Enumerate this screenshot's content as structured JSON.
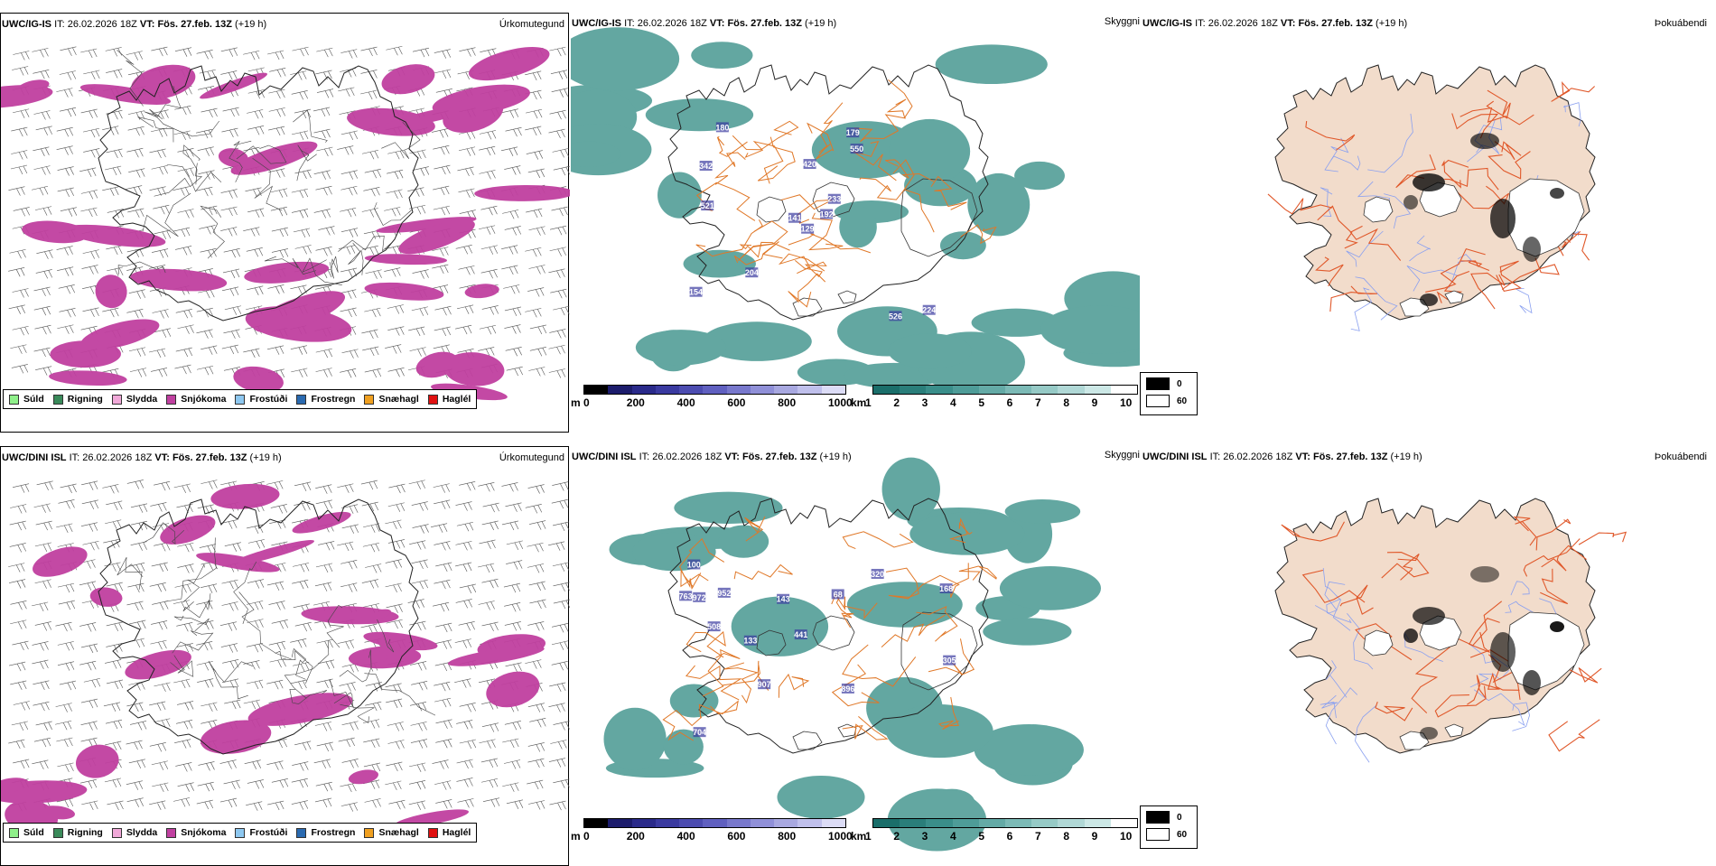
{
  "rows": [
    {
      "id": "ig",
      "model": "UWC/IG-IS",
      "it_label": "IT:",
      "it_value": "26.02.2026 18Z",
      "vt_label": "VT:",
      "vt_value": "Fös. 27.feb. 13Z",
      "lead": "(+19 h)"
    },
    {
      "id": "dini",
      "model": "UWC/DINI ISL",
      "it_label": "IT:",
      "it_value": "26.02.2026 18Z",
      "vt_label": "VT:",
      "vt_value": "Fös. 27.feb. 13Z",
      "lead": "(+19 h)"
    }
  ],
  "panel_titles": {
    "precip": "Úrkomutegund",
    "visibility": "Skyggni",
    "fog": "Þokuábendi"
  },
  "precip_legend": [
    {
      "label": "Súld",
      "color": "#8ff08a"
    },
    {
      "label": "Rigning",
      "color": "#3a8a5a"
    },
    {
      "label": "Slydda",
      "color": "#f0a8d8"
    },
    {
      "label": "Snjókoma",
      "color": "#c040a0"
    },
    {
      "label": "Frostúði",
      "color": "#8ec8f0"
    },
    {
      "label": "Frostregn",
      "color": "#2a6ab0"
    },
    {
      "label": "Snæhagl",
      "color": "#f0a020"
    },
    {
      "label": "Haglél",
      "color": "#e01010"
    }
  ],
  "height_scale": {
    "unit": "m",
    "ticks": [
      "0",
      "200",
      "400",
      "600",
      "800",
      "1000"
    ],
    "colors": [
      "#000000",
      "#1c1c6c",
      "#2a2a8a",
      "#3a3aa0",
      "#4c4cb0",
      "#6060c0",
      "#7878cc",
      "#9090d8",
      "#a8a8e0",
      "#c0c0ec",
      "#dcdcf6"
    ]
  },
  "visibility_scale": {
    "unit": "km",
    "ticks": [
      "1",
      "2",
      "3",
      "4",
      "5",
      "6",
      "7",
      "8",
      "9",
      "10"
    ],
    "colors": [
      "#1a6e6a",
      "#2a7e7a",
      "#3a8e8a",
      "#4e9c98",
      "#64aaa6",
      "#7cbab6",
      "#96cac6",
      "#b0d8d6",
      "#cce8e6",
      "#ffffff"
    ]
  },
  "fog_scale": {
    "items": [
      {
        "label": "0",
        "color": "#000000"
      },
      {
        "label": "60",
        "color": "#ffffff"
      }
    ]
  },
  "ceiling_labels": {
    "ig": [
      "526",
      "129",
      "342",
      "141",
      "154",
      "233",
      "204",
      "179",
      "420",
      "550",
      "192",
      "180",
      "224",
      "521"
    ],
    "dini": [
      "441",
      "763",
      "100",
      "305",
      "143",
      "133",
      "907",
      "896",
      "508",
      "320",
      "704",
      "168",
      "68",
      "972",
      "952"
    ]
  },
  "colors": {
    "snow": "#c040a0",
    "vis_teal": "#2f8a82",
    "road": "#e07828",
    "coast": "#222222",
    "land_fog": "#f2dccb",
    "river": "#8aa0f0",
    "fog_road": "#e0582a"
  }
}
